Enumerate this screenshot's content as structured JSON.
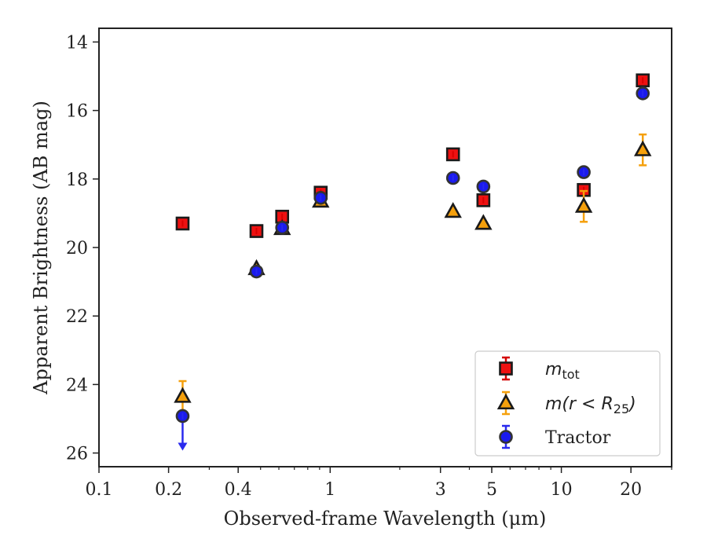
{
  "chart_data": {
    "type": "scatter",
    "xlabel": "Observed-frame Wavelength (μm)",
    "ylabel": "Apparent Brightness (AB mag)",
    "x_scale": "log",
    "xlim": [
      0.1,
      30
    ],
    "ylim": [
      26.4,
      13.6
    ],
    "y_inverted": true,
    "x_major_ticks": [
      0.1,
      0.2,
      0.4,
      1,
      3,
      5,
      10,
      20
    ],
    "x_tick_labels": [
      "0.1",
      "0.2",
      "0.4",
      "1",
      "3",
      "5",
      "10",
      "20"
    ],
    "y_ticks": [
      14,
      16,
      18,
      20,
      22,
      24,
      26
    ],
    "y_tick_labels": [
      "14",
      "16",
      "18",
      "20",
      "22",
      "24",
      "26"
    ],
    "legend_position": "lower right",
    "series": [
      {
        "name": "m_tot",
        "marker": "square",
        "color": "#ee1111",
        "edge_color": "#1a1a1a",
        "error_color": "#d40000",
        "points": [
          {
            "x": 0.23,
            "y": 19.3
          },
          {
            "x": 0.48,
            "y": 19.52
          },
          {
            "x": 0.62,
            "y": 19.1
          },
          {
            "x": 0.91,
            "y": 18.4
          },
          {
            "x": 3.4,
            "y": 17.28
          },
          {
            "x": 4.6,
            "y": 18.62
          },
          {
            "x": 12.5,
            "y": 18.32
          },
          {
            "x": 22.5,
            "y": 15.12
          }
        ]
      },
      {
        "name": "m(r < R25)",
        "marker": "triangle",
        "color": "#f5a00c",
        "edge_color": "#1a1a1a",
        "error_color": "#f5a00c",
        "points": [
          {
            "x": 0.23,
            "y": 24.35,
            "err": 0.45
          },
          {
            "x": 0.48,
            "y": 20.62
          },
          {
            "x": 0.62,
            "y": 19.45
          },
          {
            "x": 0.91,
            "y": 18.65
          },
          {
            "x": 3.4,
            "y": 18.95
          },
          {
            "x": 4.6,
            "y": 19.3
          },
          {
            "x": 12.5,
            "y": 18.8,
            "err": 0.45
          },
          {
            "x": 22.5,
            "y": 17.15,
            "err": 0.45
          }
        ]
      },
      {
        "name": "Tractor",
        "marker": "circle",
        "color": "#1a1aee",
        "edge_color": "#333333",
        "error_color": "#2a2aee",
        "points": [
          {
            "x": 0.23,
            "y": 24.92,
            "upper_limit": true
          },
          {
            "x": 0.48,
            "y": 20.7
          },
          {
            "x": 0.62,
            "y": 19.42
          },
          {
            "x": 0.91,
            "y": 18.55
          },
          {
            "x": 3.4,
            "y": 17.97
          },
          {
            "x": 4.6,
            "y": 18.22
          },
          {
            "x": 12.5,
            "y": 17.8
          },
          {
            "x": 22.5,
            "y": 15.5
          }
        ]
      }
    ]
  },
  "legend": {
    "items": [
      {
        "id": "mtot",
        "main": "m",
        "sub": "tot",
        "suffix": ""
      },
      {
        "id": "mr25",
        "main": "m(r < R",
        "sub": "25",
        "suffix": ")"
      },
      {
        "id": "tractor",
        "main": "Tractor",
        "sub": "",
        "suffix": ""
      }
    ]
  }
}
